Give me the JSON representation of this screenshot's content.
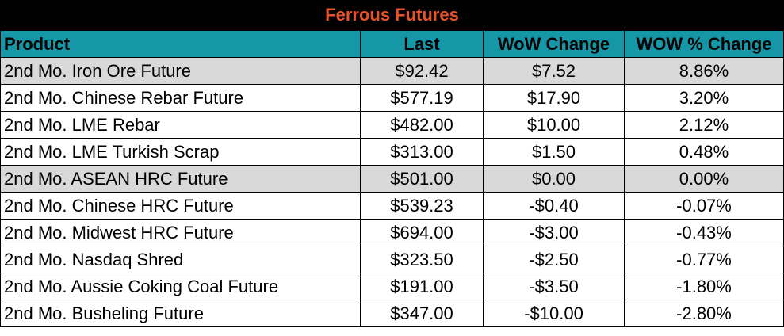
{
  "title": "Ferrous Futures",
  "colors": {
    "title_background": "#000000",
    "title_text": "#e8532a",
    "header_background": "#1597a8",
    "shaded_row": "#d9d9d9"
  },
  "headers": [
    "Product",
    "Last",
    "WoW Change",
    "WOW % Change"
  ],
  "rows": [
    {
      "product": "2nd Mo. Iron Ore Future",
      "last": "$92.42",
      "wow_change": "$7.52",
      "wow_pct": "8.86%"
    },
    {
      "product": "2nd Mo. Chinese Rebar Future",
      "last": "$577.19",
      "wow_change": "$17.90",
      "wow_pct": "3.20%"
    },
    {
      "product": "2nd Mo. LME Rebar",
      "last": "$482.00",
      "wow_change": "$10.00",
      "wow_pct": "2.12%"
    },
    {
      "product": "2nd Mo. LME Turkish Scrap",
      "last": "$313.00",
      "wow_change": "$1.50",
      "wow_pct": "0.48%"
    },
    {
      "product": "2nd Mo. ASEAN HRC Future",
      "last": "$501.00",
      "wow_change": "$0.00",
      "wow_pct": "0.00%"
    },
    {
      "product": "2nd Mo. Chinese HRC Future",
      "last": "$539.23",
      "wow_change": "-$0.40",
      "wow_pct": "-0.07%"
    },
    {
      "product": "2nd Mo. Midwest HRC Future",
      "last": "$694.00",
      "wow_change": "-$3.00",
      "wow_pct": "-0.43%"
    },
    {
      "product": "2nd Mo. Nasdaq Shred",
      "last": "$323.50",
      "wow_change": "-$2.50",
      "wow_pct": "-0.77%"
    },
    {
      "product": "2nd Mo. Aussie Coking Coal Future",
      "last": "$191.00",
      "wow_change": "-$3.50",
      "wow_pct": "-1.80%"
    },
    {
      "product": "2nd Mo. Busheling Future",
      "last": "$347.00",
      "wow_change": "-$10.00",
      "wow_pct": "-2.80%"
    }
  ]
}
